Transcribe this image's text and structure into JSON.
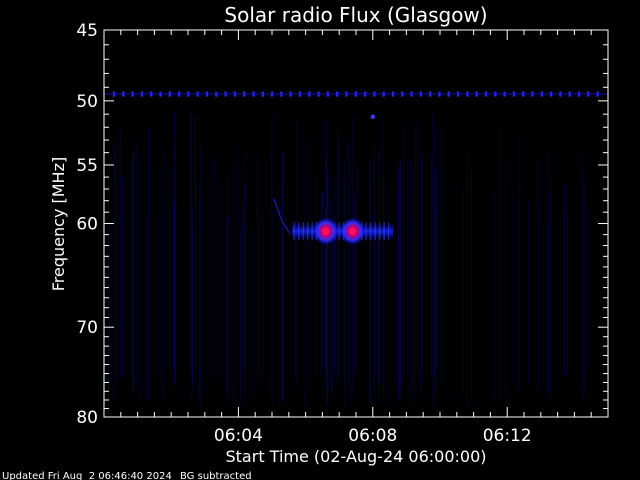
{
  "chart_data": {
    "type": "heatmap",
    "title": "Solar radio Flux (Glasgow)",
    "ylabel": "Frequency [MHz]",
    "xlabel": "Start Time (02-Aug-24 06:00:00)",
    "x_unit": "minutes after 06:00:00",
    "xlim": [
      0,
      15
    ],
    "ylim": [
      45,
      80
    ],
    "y_scale": "log",
    "y_inverted": true,
    "x_ticks": [
      {
        "value": 4,
        "label": "06:04"
      },
      {
        "value": 8,
        "label": "06:08"
      },
      {
        "value": 12,
        "label": "06:12"
      }
    ],
    "y_ticks": [
      {
        "value": 45,
        "label": "45"
      },
      {
        "value": 50,
        "label": "50"
      },
      {
        "value": 55,
        "label": "55"
      },
      {
        "value": 60,
        "label": "60"
      },
      {
        "value": 70,
        "label": "70"
      },
      {
        "value": 80,
        "label": "80"
      }
    ],
    "colors": {
      "background": "#000000",
      "low": "#0000ff",
      "high": "#ff0040"
    },
    "features": {
      "interference_line_mhz": 49.5,
      "isolated_dot": {
        "x": 8.0,
        "y": 51.2
      },
      "burst_band": {
        "x_start": 5.6,
        "x_end": 8.6,
        "freq": 60.7
      },
      "burst_hotspots": [
        {
          "x": 6.6,
          "y": 60.7
        },
        {
          "x": 7.4,
          "y": 60.7
        }
      ],
      "drift_trace": {
        "x": [
          5.05,
          5.3,
          5.55
        ],
        "y": [
          57.8,
          59.8,
          61.0
        ]
      }
    }
  },
  "footer": {
    "updated": "Updated Fri Aug  2 06:46:40 2024",
    "note": "BG subtracted"
  }
}
